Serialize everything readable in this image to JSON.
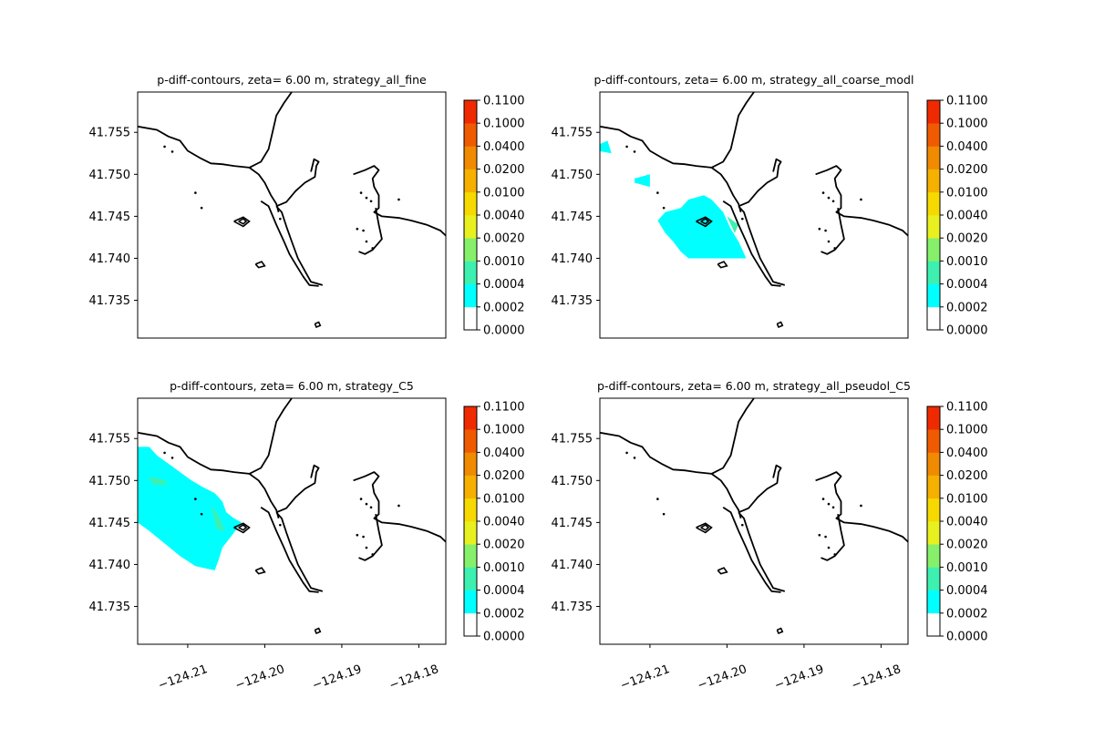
{
  "figure": {
    "colorbar_levels": [
      "0.0000",
      "0.0002",
      "0.0004",
      "0.0010",
      "0.0020",
      "0.0040",
      "0.0100",
      "0.0200",
      "0.0400",
      "0.1000",
      "0.1100"
    ],
    "colorbar_colors": [
      "#ffffff",
      "#00ffff",
      "#3df0b0",
      "#86f06b",
      "#e8f020",
      "#f5d900",
      "#f5b000",
      "#f08a00",
      "#f05a00",
      "#f02a00"
    ],
    "xtick_labels": [
      "−124.21",
      "−124.20",
      "−124.19",
      "−124.18"
    ],
    "ytick_labels": [
      "41.755",
      "41.750",
      "41.745",
      "41.740",
      "41.735"
    ],
    "coastline_color": "#000000",
    "fill_color_main": "#00ffff",
    "fill_color_secondary": "#3df0b0"
  },
  "chart_data": [
    {
      "type": "heatmap",
      "title": "p-diff-contours, zeta= 6.00 m, strategy_all_fine",
      "xlim": [
        -124.2165,
        -124.1765
      ],
      "ylim": [
        41.7305,
        41.7598
      ],
      "xticks": [
        -124.21,
        -124.2,
        -124.19,
        -124.18
      ],
      "yticks": [
        41.755,
        41.75,
        41.745,
        41.74,
        41.735
      ],
      "colorbar_levels": [
        0.0,
        0.0002,
        0.0004,
        0.001,
        0.002,
        0.004,
        0.01,
        0.02,
        0.04,
        0.1,
        0.11
      ],
      "show_xticks": false,
      "regions": []
    },
    {
      "type": "heatmap",
      "title": "p-diff-contours, zeta= 6.00 m, strategy_all_coarse_modl",
      "xlim": [
        -124.2165,
        -124.1765
      ],
      "ylim": [
        41.7305,
        41.7598
      ],
      "xticks": [
        -124.21,
        -124.2,
        -124.19,
        -124.18
      ],
      "yticks": [
        41.755,
        41.75,
        41.745,
        41.74,
        41.735
      ],
      "colorbar_levels": [
        0.0,
        0.0002,
        0.0004,
        0.001,
        0.002,
        0.004,
        0.01,
        0.02,
        0.04,
        0.1,
        0.11
      ],
      "show_xticks": false,
      "regions": [
        {
          "level": "0.0002-0.0004",
          "points": [
            [
              -124.212,
              41.7495
            ],
            [
              -124.21,
              41.75
            ],
            [
              -124.21,
              41.7485
            ],
            [
              -124.212,
              41.749
            ]
          ]
        },
        {
          "level": "0.0002-0.0004",
          "points": [
            [
              -124.209,
              41.7445
            ],
            [
              -124.208,
              41.7455
            ],
            [
              -124.206,
              41.746
            ],
            [
              -124.205,
              41.747
            ],
            [
              -124.203,
              41.7475
            ],
            [
              -124.202,
              41.747
            ],
            [
              -124.2005,
              41.7455
            ],
            [
              -124.1995,
              41.7435
            ],
            [
              -124.1985,
              41.742
            ],
            [
              -124.1975,
              41.74
            ],
            [
              -124.205,
              41.74
            ],
            [
              -124.206,
              41.7408
            ],
            [
              -124.207,
              41.742
            ],
            [
              -124.208,
              41.743
            ]
          ]
        },
        {
          "level": "0.0002-0.0004",
          "points": [
            [
              -124.218,
              41.753
            ],
            [
              -124.215,
              41.7525
            ],
            [
              -124.2155,
              41.754
            ]
          ]
        },
        {
          "level": "0.0004-0.0010",
          "points": [
            [
              -124.2,
              41.745
            ],
            [
              -124.199,
              41.743
            ],
            [
              -124.1985,
              41.744
            ]
          ]
        }
      ]
    },
    {
      "type": "heatmap",
      "title": "p-diff-contours, zeta= 6.00 m, strategy_C5",
      "xlim": [
        -124.2165,
        -124.1765
      ],
      "ylim": [
        41.7305,
        41.7598
      ],
      "xticks": [
        -124.21,
        -124.2,
        -124.19,
        -124.18
      ],
      "yticks": [
        41.755,
        41.75,
        41.745,
        41.74,
        41.735
      ],
      "colorbar_levels": [
        0.0,
        0.0002,
        0.0004,
        0.001,
        0.002,
        0.004,
        0.01,
        0.02,
        0.04,
        0.1,
        0.11
      ],
      "show_xticks": true,
      "regions": [
        {
          "level": "0.0002-0.0004",
          "points": [
            [
              -124.2165,
              41.754
            ],
            [
              -124.215,
              41.754
            ],
            [
              -124.214,
              41.753
            ],
            [
              -124.2125,
              41.752
            ],
            [
              -124.211,
              41.751
            ],
            [
              -124.2095,
              41.75
            ],
            [
              -124.208,
              41.7492
            ],
            [
              -124.2065,
              41.7485
            ],
            [
              -124.2055,
              41.7475
            ],
            [
              -124.205,
              41.7462
            ],
            [
              -124.204,
              41.7455
            ],
            [
              -124.203,
              41.745
            ],
            [
              -124.2045,
              41.7432
            ],
            [
              -124.2055,
              41.742
            ],
            [
              -124.206,
              41.7405
            ],
            [
              -124.2065,
              41.7393
            ],
            [
              -124.209,
              41.7398
            ],
            [
              -124.211,
              41.741
            ],
            [
              -124.213,
              41.7425
            ],
            [
              -124.215,
              41.744
            ],
            [
              -124.2165,
              41.745
            ]
          ]
        },
        {
          "level": "0.0004-0.0010",
          "points": [
            [
              -124.215,
              41.7505
            ],
            [
              -124.213,
              41.75
            ],
            [
              -124.2125,
              41.7495
            ],
            [
              -124.2145,
              41.7495
            ]
          ]
        },
        {
          "level": "0.0004-0.0010",
          "points": [
            [
              -124.207,
              41.747
            ],
            [
              -124.206,
              41.7458
            ],
            [
              -124.2052,
              41.744
            ],
            [
              -124.2062,
              41.7442
            ]
          ]
        }
      ]
    },
    {
      "type": "heatmap",
      "title": "p-diff-contours, zeta= 6.00 m, strategy_all_pseudol_C5",
      "xlim": [
        -124.2165,
        -124.1765
      ],
      "ylim": [
        41.7305,
        41.7598
      ],
      "xticks": [
        -124.21,
        -124.2,
        -124.19,
        -124.18
      ],
      "yticks": [
        41.755,
        41.75,
        41.745,
        41.74,
        41.735
      ],
      "colorbar_levels": [
        0.0,
        0.0002,
        0.0004,
        0.001,
        0.002,
        0.004,
        0.01,
        0.02,
        0.04,
        0.1,
        0.11
      ],
      "show_xticks": true,
      "regions": []
    }
  ],
  "coastline": {
    "north_shore": [
      [
        -124.2165,
        41.7557
      ],
      [
        -124.214,
        41.7553
      ],
      [
        -124.2125,
        41.7545
      ],
      [
        -124.211,
        41.754
      ],
      [
        -124.21,
        41.7528
      ],
      [
        -124.2085,
        41.752
      ],
      [
        -124.207,
        41.7513
      ],
      [
        -124.2055,
        41.7512
      ],
      [
        -124.204,
        41.751
      ],
      [
        -124.202,
        41.7508
      ],
      [
        -124.2005,
        41.7515
      ],
      [
        -124.1995,
        41.753
      ],
      [
        -124.199,
        41.755
      ],
      [
        -124.1985,
        41.757
      ],
      [
        -124.1975,
        41.7585
      ],
      [
        -124.1965,
        41.7598
      ]
    ],
    "bay_inlet": [
      [
        -124.202,
        41.7508
      ],
      [
        -124.2008,
        41.75
      ],
      [
        -124.2,
        41.749
      ],
      [
        -124.1992,
        41.7475
      ],
      [
        -124.1985,
        41.7465
      ],
      [
        -124.1982,
        41.7455
      ]
    ],
    "spit_west": [
      [
        -124.2005,
        41.7468
      ],
      [
        -124.1995,
        41.7462
      ],
      [
        -124.1985,
        41.744
      ],
      [
        -124.1975,
        41.742
      ],
      [
        -124.1968,
        41.7405
      ],
      [
        -124.1958,
        41.739
      ],
      [
        -124.195,
        41.7378
      ],
      [
        -124.1942,
        41.7368
      ],
      [
        -124.193,
        41.7367
      ]
    ],
    "spit_east": [
      [
        -124.1985,
        41.7462
      ],
      [
        -124.1978,
        41.7455
      ],
      [
        -124.1972,
        41.7438
      ],
      [
        -124.1965,
        41.742
      ],
      [
        -124.1957,
        41.74
      ],
      [
        -124.1948,
        41.7385
      ],
      [
        -124.194,
        41.7372
      ],
      [
        -124.1925,
        41.7368
      ]
    ],
    "jetty": [
      [
        -124.1985,
        41.7462
      ],
      [
        -124.1972,
        41.7467
      ],
      [
        -124.196,
        41.748
      ],
      [
        -124.1948,
        41.749
      ],
      [
        -124.1935,
        41.7497
      ],
      [
        -124.1933,
        41.751
      ],
      [
        -124.193,
        41.7515
      ],
      [
        -124.1936,
        41.7518
      ],
      [
        -124.194,
        41.7503
      ]
    ],
    "east_loop": [
      [
        -124.1885,
        41.75
      ],
      [
        -124.187,
        41.7505
      ],
      [
        -124.1858,
        41.751
      ],
      [
        -124.1852,
        41.7505
      ],
      [
        -124.186,
        41.7495
      ],
      [
        -124.1858,
        41.7485
      ],
      [
        -124.1852,
        41.7475
      ],
      [
        -124.1852,
        41.746
      ],
      [
        -124.1858,
        41.7455
      ],
      [
        -124.1848,
        41.745
      ],
      [
        -124.1825,
        41.7448
      ],
      [
        -124.181,
        41.7445
      ],
      [
        -124.179,
        41.744
      ],
      [
        -124.1772,
        41.7433
      ],
      [
        -124.1765,
        41.7427
      ]
    ],
    "east_lower": [
      [
        -124.1856,
        41.746
      ],
      [
        -124.1852,
        41.744
      ],
      [
        -124.1848,
        41.7423
      ],
      [
        -124.186,
        41.741
      ],
      [
        -124.187,
        41.7405
      ],
      [
        -124.1878,
        41.7408
      ]
    ],
    "island_center": [
      [
        -124.204,
        41.7444
      ],
      [
        -124.2028,
        41.7449
      ],
      [
        -124.202,
        41.7444
      ],
      [
        -124.2028,
        41.7438
      ],
      [
        -124.204,
        41.7444
      ]
    ],
    "island_center_inner": [
      [
        -124.2034,
        41.7444
      ],
      [
        -124.2028,
        41.7447
      ],
      [
        -124.2024,
        41.7444
      ],
      [
        -124.2028,
        41.7441
      ],
      [
        -124.2034,
        41.7444
      ]
    ],
    "islet_south": [
      [
        -124.2012,
        41.7393
      ],
      [
        -124.2004,
        41.7396
      ],
      [
        -124.2,
        41.7391
      ],
      [
        -124.2008,
        41.7389
      ],
      [
        -124.2012,
        41.7393
      ]
    ],
    "islet_far_south": [
      [
        -124.1935,
        41.7322
      ],
      [
        -124.193,
        41.7324
      ],
      [
        -124.1928,
        41.732
      ],
      [
        -124.1933,
        41.7318
      ],
      [
        -124.1935,
        41.7322
      ]
    ],
    "dots": [
      [
        -124.213,
        41.7533
      ],
      [
        -124.212,
        41.7527
      ],
      [
        -124.209,
        41.7478
      ],
      [
        -124.2082,
        41.746
      ],
      [
        -124.198,
        41.7447
      ],
      [
        -124.1875,
        41.7478
      ],
      [
        -124.1868,
        41.7472
      ],
      [
        -124.1862,
        41.7468
      ],
      [
        -124.1826,
        41.747
      ],
      [
        -124.188,
        41.7435
      ],
      [
        -124.1872,
        41.7433
      ],
      [
        -124.1868,
        41.742
      ],
      [
        -124.186,
        41.7412
      ]
    ]
  }
}
